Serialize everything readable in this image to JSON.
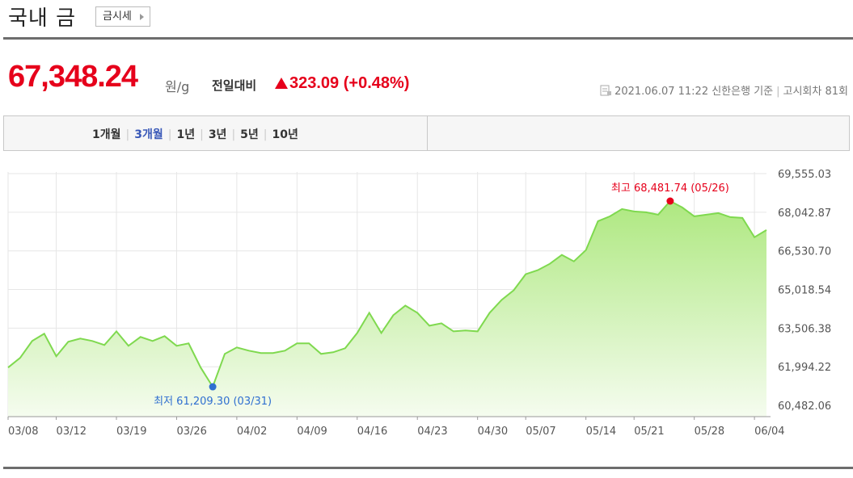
{
  "header": {
    "title": "국내 금",
    "button": "금시세"
  },
  "price": {
    "value": "67,348.24",
    "unit": "원/g",
    "change_label": "전일대비",
    "change": "323.09 (+0.48%)"
  },
  "info": {
    "datetime": "2021.06.07 11:22 신한은행 기준",
    "round": "고시회차 81회"
  },
  "tabs": {
    "items": [
      "1개월",
      "3개월",
      "1년",
      "3년",
      "5년",
      "10년"
    ],
    "active": "3개월"
  },
  "chart_data": {
    "type": "area",
    "categories": [
      "03/08",
      null,
      null,
      null,
      "03/12",
      null,
      null,
      null,
      null,
      "03/19",
      null,
      null,
      null,
      null,
      "03/26",
      null,
      null,
      null,
      null,
      "04/02",
      null,
      null,
      null,
      null,
      "04/09",
      null,
      null,
      null,
      null,
      "04/16",
      null,
      null,
      null,
      null,
      "04/23",
      null,
      null,
      null,
      null,
      "04/30",
      null,
      null,
      null,
      "05/07",
      null,
      null,
      null,
      null,
      "05/14",
      null,
      null,
      null,
      "05/21",
      null,
      null,
      null,
      null,
      "05/28",
      null,
      null,
      null,
      null,
      "06/04",
      null
    ],
    "series": [
      {
        "color": "#7fd94f",
        "values": [
          61963,
          62341,
          63002,
          63286,
          62404,
          62971,
          63097,
          63002,
          62845,
          63380,
          62813,
          63160,
          63002,
          63191,
          62813,
          62908,
          61963,
          61209.3,
          62498,
          62750,
          62624,
          62530,
          62530,
          62624,
          62908,
          62908,
          62498,
          62561,
          62719,
          63317,
          64105,
          63317,
          64010,
          64388,
          64105,
          63601,
          63695,
          63380,
          63412,
          63380,
          64105,
          64609,
          64987,
          65617,
          65774,
          66026,
          66373,
          66121,
          66562,
          67696,
          67885,
          68168,
          68074,
          68042,
          67948,
          68481.74,
          68231,
          67885,
          67948,
          68011,
          67853,
          67822,
          67066,
          67348.24
        ]
      }
    ],
    "ylim": [
      60040,
      69620
    ],
    "yticks": [
      {
        "value": 60482.06,
        "label": "60,482.06"
      },
      {
        "value": 61994.22,
        "label": "61,994.22"
      },
      {
        "value": 63506.38,
        "label": "63,506.38"
      },
      {
        "value": 65018.54,
        "label": "65,018.54"
      },
      {
        "value": 66530.7,
        "label": "66,530.70"
      },
      {
        "value": 68042.87,
        "label": "68,042.87"
      },
      {
        "value": 69555.03,
        "label": "69,555.03"
      }
    ],
    "grid": true,
    "annotations": {
      "high": {
        "text": "최고 68,481.74 (05/26)",
        "color": "#e6001b"
      },
      "low": {
        "text": "최저 61,209.30 (03/31)",
        "color": "#2f6fd0"
      }
    }
  }
}
